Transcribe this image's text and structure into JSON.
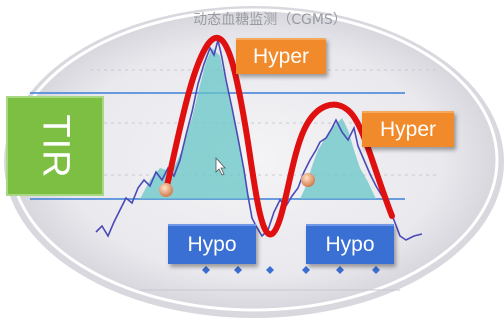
{
  "title": "动态血糖监测（CGMS）",
  "labels": {
    "hyper_1": "Hyper",
    "hyper_2": "Hyper",
    "hypo_1": "Hypo",
    "hypo_2": "Hypo",
    "tir": "TIR"
  },
  "colors": {
    "hyper": "#f08a2a",
    "hypo": "#3a6fd3",
    "tir": "#7cbf43",
    "trend_curve": "#e01010",
    "cgm_trace": "#4a4ab8",
    "target_range_line": "#3d7fd8",
    "hyper_area": "#66c6c6"
  }
}
